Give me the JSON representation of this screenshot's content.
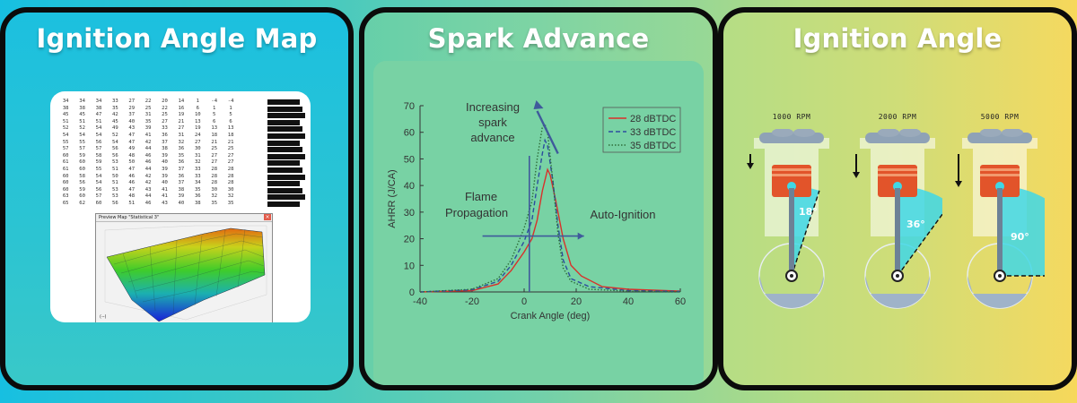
{
  "panels": [
    {
      "title": "Ignition Angle Map"
    },
    {
      "title": "Spark Advance"
    },
    {
      "title": "Ignition Angle"
    }
  ],
  "map": {
    "rows": [
      [
        "34",
        "34",
        "34",
        "33",
        "27",
        "22",
        "20",
        "14",
        "1",
        "-4",
        "-4"
      ],
      [
        "38",
        "38",
        "38",
        "35",
        "29",
        "25",
        "22",
        "16",
        "6",
        "1",
        "1"
      ],
      [
        "45",
        "45",
        "47",
        "42",
        "37",
        "31",
        "25",
        "19",
        "10",
        "5",
        "5"
      ],
      [
        "51",
        "51",
        "51",
        "45",
        "40",
        "35",
        "27",
        "21",
        "13",
        "6",
        "6"
      ],
      [
        "52",
        "52",
        "54",
        "49",
        "43",
        "39",
        "33",
        "27",
        "19",
        "13",
        "13"
      ],
      [
        "54",
        "54",
        "54",
        "52",
        "47",
        "41",
        "36",
        "31",
        "24",
        "18",
        "18"
      ],
      [
        "55",
        "55",
        "56",
        "54",
        "47",
        "42",
        "37",
        "32",
        "27",
        "21",
        "21"
      ],
      [
        "57",
        "57",
        "57",
        "56",
        "49",
        "44",
        "38",
        "36",
        "30",
        "25",
        "25"
      ],
      [
        "60",
        "59",
        "58",
        "56",
        "48",
        "46",
        "39",
        "35",
        "31",
        "27",
        "27"
      ],
      [
        "61",
        "60",
        "59",
        "53",
        "50",
        "46",
        "40",
        "36",
        "32",
        "27",
        "27"
      ],
      [
        "61",
        "60",
        "55",
        "51",
        "47",
        "44",
        "39",
        "37",
        "33",
        "28",
        "28"
      ],
      [
        "60",
        "58",
        "54",
        "50",
        "46",
        "42",
        "39",
        "36",
        "33",
        "28",
        "28"
      ],
      [
        "60",
        "56",
        "54",
        "51",
        "46",
        "42",
        "40",
        "37",
        "34",
        "28",
        "28"
      ],
      [
        "60",
        "59",
        "56",
        "53",
        "47",
        "43",
        "41",
        "38",
        "35",
        "30",
        "30"
      ],
      [
        "63",
        "60",
        "57",
        "53",
        "48",
        "44",
        "41",
        "39",
        "36",
        "32",
        "32"
      ],
      [
        "65",
        "62",
        "60",
        "56",
        "51",
        "46",
        "43",
        "40",
        "38",
        "35",
        "35"
      ]
    ],
    "preview_title": "Preview Map \"Statistical 3\"",
    "corner_label": "(--)"
  },
  "chart_data": {
    "type": "line",
    "title": "",
    "xlabel": "Crank Angle (deg)",
    "ylabel": "AHRR (J/CA)",
    "xlim": [
      -40,
      60
    ],
    "ylim": [
      0,
      70
    ],
    "xticks": [
      -40,
      -20,
      0,
      20,
      40,
      60
    ],
    "yticks": [
      0,
      10,
      20,
      30,
      40,
      50,
      60,
      70
    ],
    "series": [
      {
        "name": "28 dBTDC",
        "color": "#d9302a",
        "style": "solid",
        "points": [
          [
            -40,
            0
          ],
          [
            -20,
            0.5
          ],
          [
            -10,
            3
          ],
          [
            -5,
            8
          ],
          [
            0,
            15
          ],
          [
            3,
            20
          ],
          [
            5,
            27
          ],
          [
            7,
            38
          ],
          [
            9,
            46
          ],
          [
            10,
            44
          ],
          [
            12,
            35
          ],
          [
            15,
            20
          ],
          [
            18,
            10
          ],
          [
            22,
            6
          ],
          [
            30,
            2
          ],
          [
            40,
            1
          ],
          [
            60,
            0.3
          ]
        ]
      },
      {
        "name": "33 dBTDC",
        "color": "#2c4d9e",
        "style": "dashed",
        "points": [
          [
            -40,
            0
          ],
          [
            -20,
            0.8
          ],
          [
            -10,
            4
          ],
          [
            -5,
            10
          ],
          [
            0,
            19
          ],
          [
            3,
            27
          ],
          [
            5,
            40
          ],
          [
            7,
            52
          ],
          [
            8,
            57
          ],
          [
            9,
            55
          ],
          [
            11,
            42
          ],
          [
            13,
            25
          ],
          [
            15,
            12
          ],
          [
            18,
            5
          ],
          [
            25,
            2
          ],
          [
            40,
            0.5
          ],
          [
            60,
            0.2
          ]
        ]
      },
      {
        "name": "35 dBTDC",
        "color": "#2f6e3a",
        "style": "dotted",
        "points": [
          [
            -40,
            0
          ],
          [
            -20,
            1
          ],
          [
            -10,
            5
          ],
          [
            -5,
            12
          ],
          [
            0,
            24
          ],
          [
            3,
            34
          ],
          [
            5,
            50
          ],
          [
            7,
            62
          ],
          [
            8,
            63
          ],
          [
            9,
            60
          ],
          [
            11,
            42
          ],
          [
            13,
            22
          ],
          [
            15,
            9
          ],
          [
            18,
            4
          ],
          [
            25,
            1
          ],
          [
            40,
            0.3
          ],
          [
            60,
            0.1
          ]
        ]
      }
    ],
    "annotations": [
      "Increasing",
      "spark",
      "advance",
      "Flame",
      "Propagation",
      "Auto-Ignition"
    ],
    "legend": "top-right"
  },
  "engines": [
    {
      "rpm_label": "1000 RPM",
      "angle_label": "18°",
      "angle_deg": 18
    },
    {
      "rpm_label": "2000 RPM",
      "angle_label": "36°",
      "angle_deg": 36
    },
    {
      "rpm_label": "5000 RPM",
      "angle_label": "90°",
      "angle_deg": 90
    }
  ],
  "colors": {
    "piston": "#e2542a",
    "sweep": "#3fd7e6",
    "crank": "#9fb3c9",
    "arrow": "#3f5a9b"
  }
}
